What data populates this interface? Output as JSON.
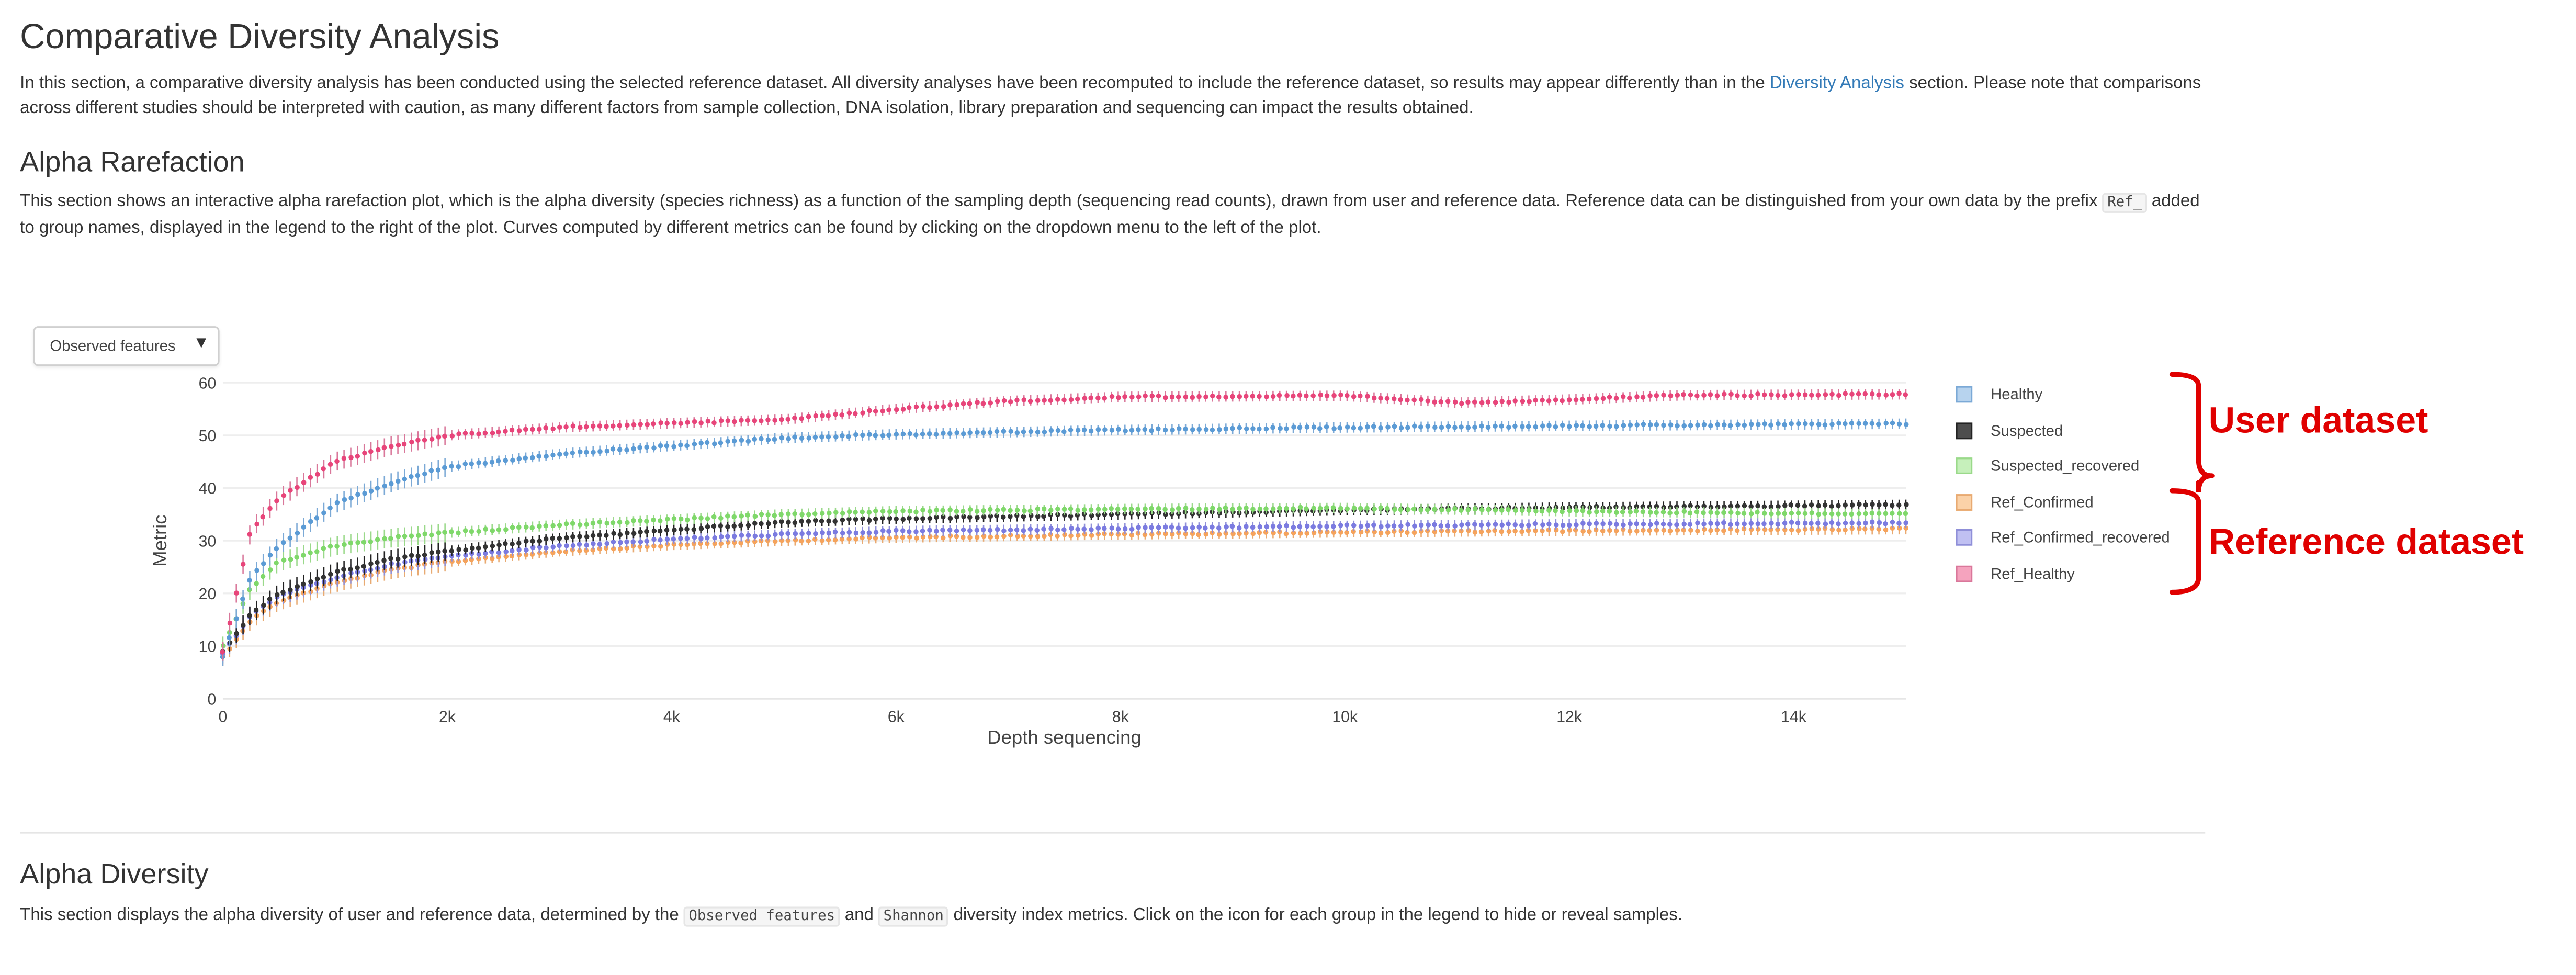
{
  "page": {
    "title": "Comparative Diversity Analysis",
    "intro": {
      "before_link": "In this section, a comparative diversity analysis has been conducted using the selected reference dataset. All diversity analyses have been recomputed to include the reference dataset, so results may appear differently than in the ",
      "link": "Diversity Analysis",
      "after_link": " section. Please note that comparisons across different studies should be interpreted with caution, as many different factors from sample collection, DNA isolation, library preparation and sequencing can impact the results obtained."
    }
  },
  "rarefaction": {
    "title": "Alpha Rarefaction",
    "desc_before_code": "This section shows an interactive alpha rarefaction plot, which is the alpha diversity (species richness) as a function of the sampling depth (sequencing read counts), drawn from user and reference data. Reference data can be distinguished from your own data by the prefix ",
    "desc_code": "Ref_",
    "desc_after_code": " added to group names, displayed in the legend to the right of the plot. Curves computed by different metrics can be found by clicking on the dropdown menu to the left of the plot.",
    "dropdown": {
      "selected": "Observed features",
      "caret": "▼"
    }
  },
  "annotations": {
    "user": "User dataset",
    "reference": "Reference dataset",
    "color": "#e00000"
  },
  "alpha_diversity": {
    "title": "Alpha Diversity",
    "desc_before": "This section displays the alpha diversity of user and reference data, determined by the ",
    "code1": "Observed features",
    "desc_mid": " and ",
    "code2": "Shannon",
    "desc_after": " diversity index metrics. Click on the icon for each group in the legend to hide or reveal samples."
  },
  "chart_data": {
    "type": "scatter",
    "xlabel": "Depth sequencing",
    "ylabel": "Metric",
    "xlim": [
      0,
      15000
    ],
    "ylim": [
      0,
      60
    ],
    "x_ticks": [
      0,
      2000,
      4000,
      6000,
      8000,
      10000,
      12000,
      14000
    ],
    "x_tick_labels": [
      "0",
      "2k",
      "4k",
      "6k",
      "8k",
      "10k",
      "12k",
      "14k"
    ],
    "y_ticks": [
      0,
      10,
      20,
      30,
      40,
      50,
      60
    ],
    "y_tick_labels": [
      "0",
      "10",
      "20",
      "30",
      "40",
      "50",
      "60"
    ],
    "grid": true,
    "legend_position": "right",
    "series": [
      {
        "name": "Healthy",
        "color": "#5b9bd5",
        "fill": "#b7d3ee",
        "stroke": "#7ba9d6",
        "points": [
          [
            0,
            8
          ],
          [
            250,
            23
          ],
          [
            500,
            29
          ],
          [
            1000,
            37
          ],
          [
            1500,
            41
          ],
          [
            2000,
            44
          ],
          [
            3000,
            46.5
          ],
          [
            4000,
            48
          ],
          [
            5000,
            49.5
          ],
          [
            6000,
            50.2
          ],
          [
            8000,
            51
          ],
          [
            10000,
            51.5
          ],
          [
            12000,
            51.8
          ],
          [
            15000,
            52.2
          ]
        ]
      },
      {
        "name": "Suspected",
        "color": "#333333",
        "fill": "#4d4d4d",
        "stroke": "#222222",
        "points": [
          [
            0,
            9
          ],
          [
            250,
            16
          ],
          [
            500,
            20
          ],
          [
            1000,
            24
          ],
          [
            1500,
            26.5
          ],
          [
            2000,
            28
          ],
          [
            3000,
            30.5
          ],
          [
            4000,
            32
          ],
          [
            5000,
            33.5
          ],
          [
            6000,
            34.2
          ],
          [
            8000,
            35
          ],
          [
            10000,
            35.8
          ],
          [
            12000,
            36.3
          ],
          [
            15000,
            36.8
          ]
        ]
      },
      {
        "name": "Suspected_recovered",
        "color": "#7fd86a",
        "fill": "#c6f0bb",
        "stroke": "#9ad98a",
        "points": [
          [
            0,
            10
          ],
          [
            250,
            21
          ],
          [
            500,
            26
          ],
          [
            1000,
            29
          ],
          [
            1500,
            30.5
          ],
          [
            2000,
            31.5
          ],
          [
            3000,
            33
          ],
          [
            4000,
            34
          ],
          [
            5000,
            35
          ],
          [
            6000,
            35.6
          ],
          [
            8000,
            36
          ],
          [
            10000,
            36.2
          ],
          [
            12000,
            35.6
          ],
          [
            15000,
            35
          ]
        ]
      },
      {
        "name": "Ref_Confirmed",
        "color": "#f5a35c",
        "fill": "#fbd2a8",
        "stroke": "#e8aa72",
        "points": [
          [
            0,
            8
          ],
          [
            250,
            15
          ],
          [
            500,
            18.5
          ],
          [
            1000,
            22
          ],
          [
            1500,
            24.5
          ],
          [
            2000,
            26
          ],
          [
            3000,
            28
          ],
          [
            4000,
            29.2
          ],
          [
            5000,
            30
          ],
          [
            6000,
            30.6
          ],
          [
            8000,
            31.2
          ],
          [
            10000,
            31.6
          ],
          [
            12000,
            31.9
          ],
          [
            15000,
            32.2
          ]
        ]
      },
      {
        "name": "Ref_Confirmed_recovered",
        "color": "#7b7be0",
        "fill": "#c0c0f2",
        "stroke": "#8f8fd8",
        "points": [
          [
            0,
            8.5
          ],
          [
            250,
            16
          ],
          [
            500,
            19.5
          ],
          [
            1000,
            23
          ],
          [
            1500,
            25.5
          ],
          [
            2000,
            27
          ],
          [
            3000,
            29
          ],
          [
            4000,
            30.3
          ],
          [
            5000,
            31.2
          ],
          [
            6000,
            31.8
          ],
          [
            8000,
            32.3
          ],
          [
            10000,
            32.8
          ],
          [
            12000,
            33.1
          ],
          [
            15000,
            33.4
          ]
        ]
      },
      {
        "name": "Ref_Healthy",
        "color": "#e8457a",
        "fill": "#f5a3be",
        "stroke": "#d9779a",
        "points": [
          [
            0,
            9
          ],
          [
            250,
            32
          ],
          [
            500,
            38
          ],
          [
            1000,
            45
          ],
          [
            1500,
            48
          ],
          [
            2000,
            50
          ],
          [
            3000,
            51.5
          ],
          [
            4000,
            52.3
          ],
          [
            5000,
            53
          ],
          [
            6000,
            55
          ],
          [
            7000,
            56.5
          ],
          [
            8000,
            57.3
          ],
          [
            10000,
            57.5
          ],
          [
            11000,
            56.2
          ],
          [
            12000,
            56.8
          ],
          [
            13000,
            57.6
          ],
          [
            15000,
            57.8
          ]
        ]
      }
    ]
  }
}
